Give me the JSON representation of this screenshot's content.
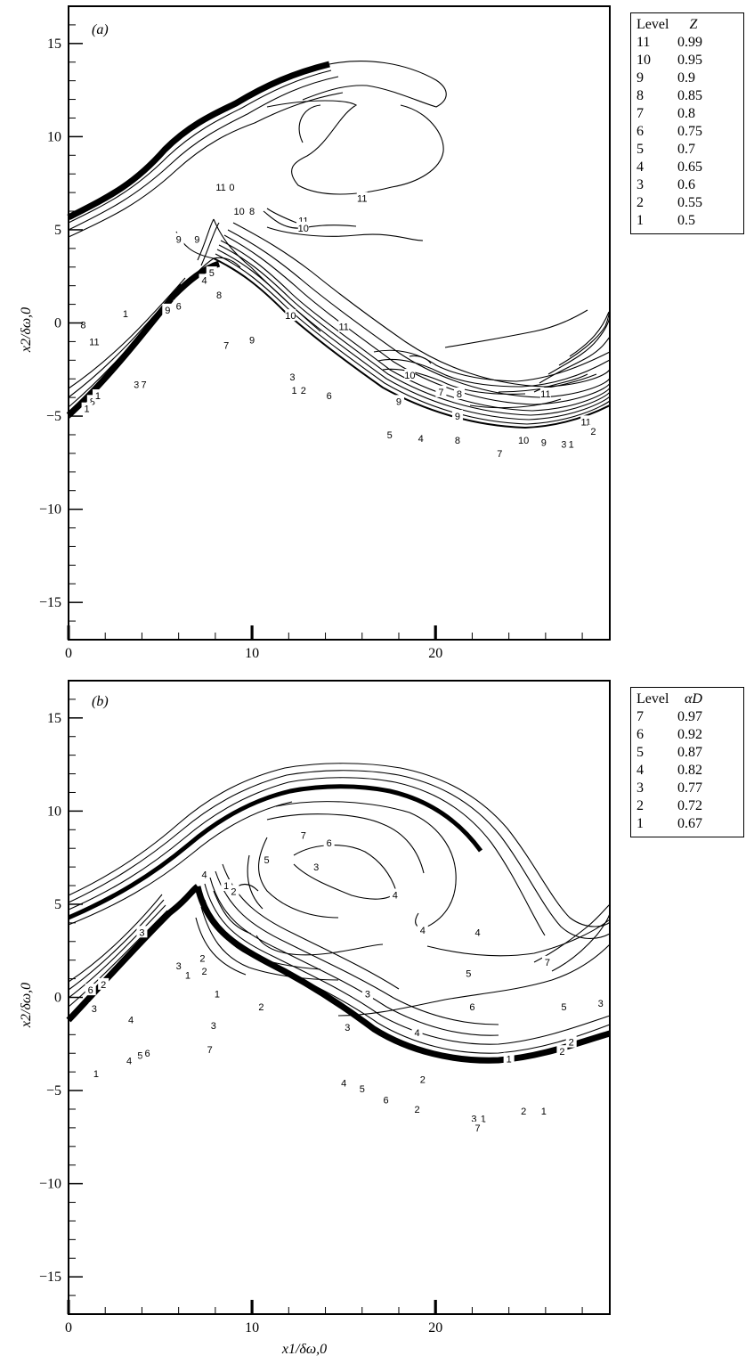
{
  "chart_data": [
    {
      "type": "contour",
      "panel_label": "(a)",
      "xlabel": "",
      "ylabel": "x2/δω,0",
      "xlim": [
        0,
        29.5
      ],
      "ylim": [
        -17,
        17
      ],
      "x_ticks": [
        "0",
        "10",
        "20"
      ],
      "y_ticks": [
        "15",
        "10",
        "5",
        "0",
        "−5",
        "−10",
        "−15"
      ],
      "legend": {
        "header": [
          "Level",
          "Z"
        ],
        "rows": [
          [
            "11",
            "0.99"
          ],
          [
            "10",
            "0.95"
          ],
          [
            "9",
            "0.9"
          ],
          [
            "8",
            "0.85"
          ],
          [
            "7",
            "0.8"
          ],
          [
            "6",
            "0.75"
          ],
          [
            "5",
            "0.7"
          ],
          [
            "4",
            "0.65"
          ],
          [
            "3",
            "0.6"
          ],
          [
            "2",
            "0.55"
          ],
          [
            "1",
            "0.5"
          ]
        ]
      },
      "contour_labels": [
        {
          "text": "11",
          "x": 8.3,
          "y": 7.3
        },
        {
          "text": "0",
          "x": 8.9,
          "y": 7.3
        },
        {
          "text": "11",
          "x": 16.0,
          "y": 6.7
        },
        {
          "text": "10",
          "x": 9.3,
          "y": 6.0
        },
        {
          "text": "8",
          "x": 10.0,
          "y": 6.0
        },
        {
          "text": "11",
          "x": 12.8,
          "y": 5.5
        },
        {
          "text": "10",
          "x": 12.8,
          "y": 5.1
        },
        {
          "text": "9",
          "x": 6.0,
          "y": 4.5
        },
        {
          "text": "9",
          "x": 7.0,
          "y": 4.5
        },
        {
          "text": "5",
          "x": 7.8,
          "y": 2.7
        },
        {
          "text": "4",
          "x": 7.4,
          "y": 2.3
        },
        {
          "text": "8",
          "x": 8.2,
          "y": 1.5
        },
        {
          "text": "9",
          "x": 5.4,
          "y": 0.7
        },
        {
          "text": "6",
          "x": 6.0,
          "y": 0.9
        },
        {
          "text": "10",
          "x": 12.1,
          "y": 0.4
        },
        {
          "text": "11",
          "x": 15.0,
          "y": -0.2
        },
        {
          "text": "8",
          "x": 0.8,
          "y": -0.1
        },
        {
          "text": "11",
          "x": 1.4,
          "y": -1.0
        },
        {
          "text": "7",
          "x": 8.6,
          "y": -1.2
        },
        {
          "text": "9",
          "x": 10.0,
          "y": -0.9
        },
        {
          "text": "1",
          "x": 3.1,
          "y": 0.5
        },
        {
          "text": "3",
          "x": 12.2,
          "y": -2.9
        },
        {
          "text": "10",
          "x": 18.6,
          "y": -2.8
        },
        {
          "text": "1",
          "x": 12.3,
          "y": -3.6
        },
        {
          "text": "2",
          "x": 12.8,
          "y": -3.6
        },
        {
          "text": "6",
          "x": 14.2,
          "y": -3.9
        },
        {
          "text": "7",
          "x": 20.3,
          "y": -3.7
        },
        {
          "text": "8",
          "x": 21.3,
          "y": -3.8
        },
        {
          "text": "9",
          "x": 18.0,
          "y": -4.2
        },
        {
          "text": "11",
          "x": 26.0,
          "y": -3.8
        },
        {
          "text": "8",
          "x": 1.3,
          "y": -4.2
        },
        {
          "text": "3",
          "x": 3.7,
          "y": -3.3
        },
        {
          "text": "7",
          "x": 4.1,
          "y": -3.3
        },
        {
          "text": "9",
          "x": 21.2,
          "y": -5.0
        },
        {
          "text": "11",
          "x": 28.2,
          "y": -5.3
        },
        {
          "text": "2",
          "x": 28.6,
          "y": -5.8
        },
        {
          "text": "5",
          "x": 17.5,
          "y": -6.0
        },
        {
          "text": "4",
          "x": 19.2,
          "y": -6.2
        },
        {
          "text": "8",
          "x": 21.2,
          "y": -6.3
        },
        {
          "text": "10",
          "x": 24.8,
          "y": -6.3
        },
        {
          "text": "9",
          "x": 25.9,
          "y": -6.4
        },
        {
          "text": "3",
          "x": 27.0,
          "y": -6.5
        },
        {
          "text": "1",
          "x": 27.4,
          "y": -6.5
        },
        {
          "text": "7",
          "x": 23.5,
          "y": -7.0
        },
        {
          "text": "1",
          "x": 1.0,
          "y": -4.6
        },
        {
          "text": "1",
          "x": 1.6,
          "y": -3.9
        }
      ]
    },
    {
      "type": "contour",
      "panel_label": "(b)",
      "xlabel": "x1/δω,0",
      "ylabel": "x2/δω,0",
      "xlim": [
        0,
        29.5
      ],
      "ylim": [
        -17,
        17
      ],
      "x_ticks": [
        "0",
        "10",
        "20"
      ],
      "y_ticks": [
        "15",
        "10",
        "5",
        "0",
        "−5",
        "−10",
        "−15"
      ],
      "legend": {
        "header": [
          "Level",
          "αD"
        ],
        "rows": [
          [
            "7",
            "0.97"
          ],
          [
            "6",
            "0.92"
          ],
          [
            "5",
            "0.87"
          ],
          [
            "4",
            "0.82"
          ],
          [
            "3",
            "0.77"
          ],
          [
            "2",
            "0.72"
          ],
          [
            "1",
            "0.67"
          ]
        ]
      },
      "contour_labels": [
        {
          "text": "7",
          "x": 12.8,
          "y": 8.7
        },
        {
          "text": "6",
          "x": 14.2,
          "y": 8.3
        },
        {
          "text": "5",
          "x": 10.8,
          "y": 7.4
        },
        {
          "text": "3",
          "x": 13.5,
          "y": 7.0
        },
        {
          "text": "4",
          "x": 7.4,
          "y": 6.6
        },
        {
          "text": "1",
          "x": 8.6,
          "y": 6.0
        },
        {
          "text": "2",
          "x": 9.0,
          "y": 5.7
        },
        {
          "text": "4",
          "x": 17.8,
          "y": 5.5
        },
        {
          "text": "4",
          "x": 19.3,
          "y": 3.6
        },
        {
          "text": "4",
          "x": 22.3,
          "y": 3.5
        },
        {
          "text": "7",
          "x": 26.1,
          "y": 1.9
        },
        {
          "text": "3",
          "x": 4.0,
          "y": 3.5
        },
        {
          "text": "2",
          "x": 7.3,
          "y": 2.1
        },
        {
          "text": "3",
          "x": 6.0,
          "y": 1.7
        },
        {
          "text": "1",
          "x": 6.5,
          "y": 1.2
        },
        {
          "text": "2",
          "x": 7.4,
          "y": 1.4
        },
        {
          "text": "5",
          "x": 21.8,
          "y": 1.3
        },
        {
          "text": "1",
          "x": 8.1,
          "y": 0.2
        },
        {
          "text": "3",
          "x": 16.3,
          "y": 0.2
        },
        {
          "text": "6",
          "x": 1.2,
          "y": 0.4
        },
        {
          "text": "2",
          "x": 1.9,
          "y": 0.7
        },
        {
          "text": "3",
          "x": 1.4,
          "y": -0.6
        },
        {
          "text": "6",
          "x": 22.0,
          "y": -0.5
        },
        {
          "text": "2",
          "x": 10.5,
          "y": -0.5
        },
        {
          "text": "4",
          "x": 3.4,
          "y": -1.2
        },
        {
          "text": "5",
          "x": 27.0,
          "y": -0.5
        },
        {
          "text": "3",
          "x": 29.0,
          "y": -0.3
        },
        {
          "text": "3",
          "x": 7.9,
          "y": -1.5
        },
        {
          "text": "3",
          "x": 15.2,
          "y": -1.6
        },
        {
          "text": "4",
          "x": 19.0,
          "y": -1.9
        },
        {
          "text": "7",
          "x": 7.7,
          "y": -2.8
        },
        {
          "text": "2",
          "x": 27.4,
          "y": -2.4
        },
        {
          "text": "2",
          "x": 26.9,
          "y": -2.9
        },
        {
          "text": "4",
          "x": 3.3,
          "y": -3.4
        },
        {
          "text": "5",
          "x": 3.9,
          "y": -3.1
        },
        {
          "text": "6",
          "x": 4.3,
          "y": -3.0
        },
        {
          "text": "1",
          "x": 24.0,
          "y": -3.3
        },
        {
          "text": "1",
          "x": 1.5,
          "y": -4.1
        },
        {
          "text": "2",
          "x": 19.3,
          "y": -4.4
        },
        {
          "text": "4",
          "x": 15.0,
          "y": -4.6
        },
        {
          "text": "5",
          "x": 16.0,
          "y": -4.9
        },
        {
          "text": "6",
          "x": 17.3,
          "y": -5.5
        },
        {
          "text": "2",
          "x": 19.0,
          "y": -6.0
        },
        {
          "text": "2",
          "x": 24.8,
          "y": -6.1
        },
        {
          "text": "1",
          "x": 25.9,
          "y": -6.1
        },
        {
          "text": "3",
          "x": 22.1,
          "y": -6.5
        },
        {
          "text": "1",
          "x": 22.6,
          "y": -6.5
        },
        {
          "text": "7",
          "x": 22.3,
          "y": -7.0
        }
      ]
    }
  ]
}
